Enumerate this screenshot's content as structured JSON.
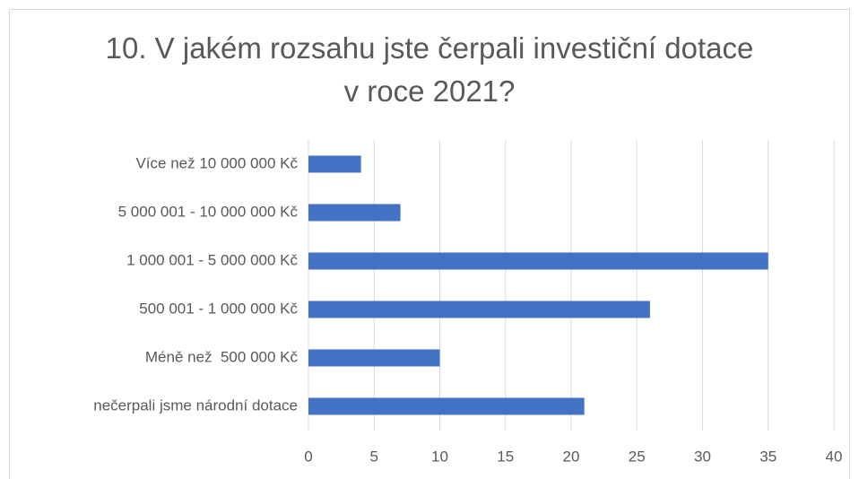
{
  "chart_data": {
    "type": "bar",
    "orientation": "horizontal",
    "title": "10. V jakém rozsahu jste čerpali investiční dotace\nv roce 2021?",
    "categories": [
      "Více než 10 000 000 Kč",
      "5 000 001 - 10 000 000 Kč",
      "1 000 001 - 5 000 000 Kč",
      "500 001 - 1 000 000 Kč",
      "Méně než  500 000 Kč",
      "nečerpali jsme národní dotace"
    ],
    "values": [
      4,
      7,
      35,
      26,
      10,
      21
    ],
    "color": "#4472c4",
    "xlim": [
      0,
      40
    ],
    "xticks": [
      0,
      5,
      10,
      15,
      20,
      25,
      30,
      35,
      40
    ],
    "grid": true
  }
}
